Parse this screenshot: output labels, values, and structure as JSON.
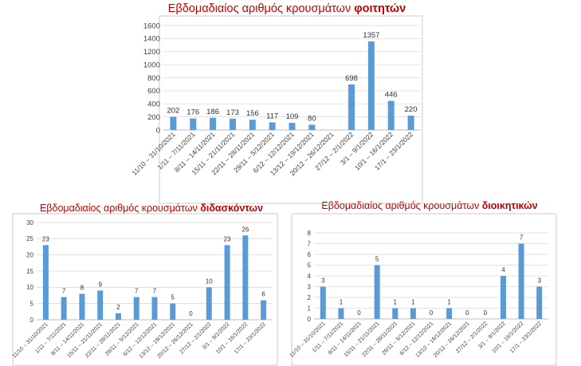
{
  "chart_data": [
    {
      "type": "bar",
      "title_main": "Εβδομαδιαίος αριθμός κρουσμάτων",
      "title_bold": "φοιτητών",
      "categories": [
        "11/10 – 31/10/2021",
        "1/11 – 7/11/2021",
        "8/11 – 14/11/2021",
        "15/11 – 21/11/2021",
        "22/11 – 28/11/2021",
        "29/11 – 5/12/2021",
        "6/12 – 12/12/2021",
        "13/12 – 19/12/2021",
        "20/12 – 26/12/2021",
        "27/12 – 2/1/2022",
        "3/1 – 9/1/2022",
        "10/1 – 16/1/2022",
        "17/1 – 23/1/2022"
      ],
      "values": [
        202,
        176,
        186,
        173,
        156,
        117,
        109,
        80,
        null,
        698,
        1357,
        446,
        220
      ],
      "value_labels": [
        "202",
        "176",
        "186",
        "173",
        "156",
        "117",
        "109",
        "80",
        "",
        "698",
        "1357",
        "446",
        "220"
      ],
      "ylim": [
        0,
        1600
      ],
      "yticks": [
        "0",
        "200",
        "400",
        "600",
        "800",
        "1000",
        "1200",
        "1400",
        "1600"
      ],
      "grid": true,
      "bar_color": "#5b9bd5"
    },
    {
      "type": "bar",
      "title_main": "Εβδομαδιαίος αριθμός κρουσμάτων",
      "title_bold": "διδασκόντων",
      "categories": [
        "11/10 – 31/10/2021",
        "1/11 – 7/11/2021",
        "8/11 – 14/11/2021",
        "15/11 – 21/11/2021",
        "22/11 – 28/11/2021",
        "29/11 – 5/12/2021",
        "6/12 – 12/12/2021",
        "13/12 – 19/12/2021",
        "20/12 – 26/12/2021",
        "27/12 – 2/1/2022",
        "3/1 – 9/1/2022",
        "10/1 – 16/1/2022",
        "17/1 – 23/1/2022"
      ],
      "values": [
        23,
        7,
        8,
        9,
        2,
        7,
        7,
        5,
        0,
        10,
        23,
        26,
        6
      ],
      "value_labels": [
        "23",
        "7",
        "8",
        "9",
        "2",
        "7",
        "7",
        "5",
        "0",
        "10",
        "23",
        "26",
        "6"
      ],
      "ylim": [
        0,
        30
      ],
      "yticks": [
        "0",
        "5",
        "10",
        "15",
        "20",
        "25",
        "30"
      ],
      "grid": true,
      "bar_color": "#5b9bd5"
    },
    {
      "type": "bar",
      "title_main": "Εβδομαδιαίος αριθμός κρουσμάτων",
      "title_bold": "διοικητικών",
      "categories": [
        "11/10 – 31/10/2021",
        "1/11 – 7/11/2021",
        "8/11 – 14/11/2021",
        "15/11 – 21/11/2021",
        "22/11 – 28/11/2021",
        "29/11 – 5/12/2021",
        "6/12 – 12/12/2021",
        "13/12 – 19/12/2021",
        "20/12 – 26/12/2021",
        "27/12 – 2/1/2022",
        "3/1 – 9/1/2022",
        "10/1 – 16/1/2022",
        "17/1 – 23/1/2022"
      ],
      "values": [
        3,
        1,
        0,
        5,
        1,
        1,
        0,
        1,
        0,
        0,
        4,
        7,
        3
      ],
      "value_labels": [
        "3",
        "1",
        "0",
        "5",
        "1",
        "1",
        "0",
        "1",
        "0",
        "0",
        "4",
        "7",
        "3"
      ],
      "ylim": [
        0,
        8
      ],
      "yticks": [
        "0",
        "1",
        "2",
        "3",
        "4",
        "5",
        "6",
        "7",
        "8"
      ],
      "grid": true,
      "bar_color": "#5b9bd5"
    }
  ],
  "colors": {
    "title": "#c00000",
    "bar": "#5b9bd5",
    "grid": "#d9d9d9",
    "frame": "#bfbfbf"
  }
}
